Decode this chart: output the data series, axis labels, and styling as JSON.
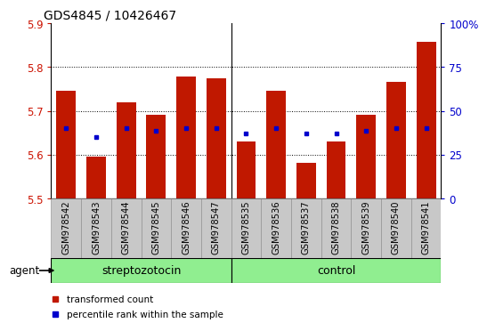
{
  "title": "GDS4845 / 10426467",
  "samples": [
    "GSM978542",
    "GSM978543",
    "GSM978544",
    "GSM978545",
    "GSM978546",
    "GSM978547",
    "GSM978535",
    "GSM978536",
    "GSM978537",
    "GSM978538",
    "GSM978539",
    "GSM978540",
    "GSM978541"
  ],
  "bar_values": [
    5.745,
    5.595,
    5.72,
    5.69,
    5.778,
    5.775,
    5.63,
    5.745,
    5.582,
    5.63,
    5.69,
    5.765,
    5.858
  ],
  "blue_dot_values": [
    5.66,
    5.64,
    5.66,
    5.655,
    5.66,
    5.66,
    5.648,
    5.66,
    5.648,
    5.648,
    5.655,
    5.66,
    5.66
  ],
  "ymin": 5.5,
  "ymax": 5.9,
  "yticks_left": [
    5.5,
    5.6,
    5.7,
    5.8,
    5.9
  ],
  "yticks_right_pct": [
    0,
    25,
    50,
    75,
    100
  ],
  "bar_color": "#c01800",
  "dot_color": "#0000cc",
  "grid_lines": [
    5.6,
    5.7,
    5.8
  ],
  "group1_label": "streptozotocin",
  "group2_label": "control",
  "group1_count": 6,
  "group_bg": "#90ee90",
  "agent_label": "agent",
  "legend1": "transformed count",
  "legend2": "percentile rank within the sample",
  "bar_bottom": 5.5,
  "bar_width": 0.65,
  "left_tick_color": "#cc1100",
  "right_tick_color": "#0000cc",
  "tick_bg_color": "#c8c8c8",
  "title_fontsize": 10,
  "axis_fontsize": 8.5,
  "sample_fontsize": 7.2,
  "group_fontsize": 9,
  "legend_fontsize": 7.5
}
